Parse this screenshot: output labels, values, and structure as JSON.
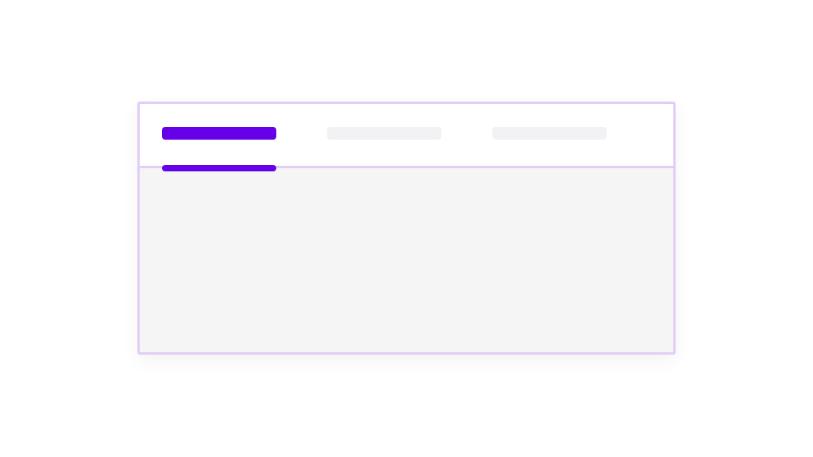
{
  "colors": {
    "accent": "#6600e8",
    "inactive_tab": "#f2f2f4",
    "border": "#e2cdf8",
    "panel_bg": "#f5f5f5"
  },
  "tabs": {
    "active_index": 0,
    "items": [
      {
        "state": "active"
      },
      {
        "state": "inactive"
      },
      {
        "state": "inactive"
      }
    ]
  }
}
